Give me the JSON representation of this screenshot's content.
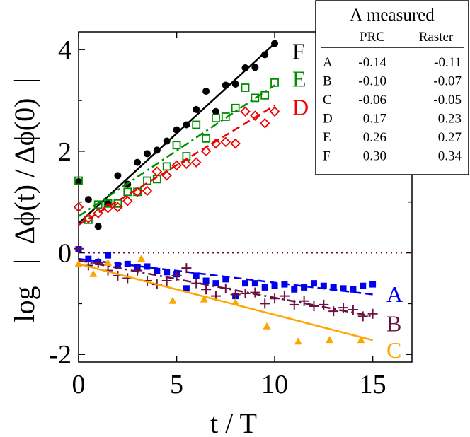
{
  "chart_data": {
    "type": "scatter",
    "title": "",
    "xlabel": "t / T",
    "ylabel_left": "log",
    "ylabel_fraction": "Δϕ(t) / Δϕ(0)",
    "xlim": [
      0,
      17
    ],
    "ylim": [
      -2.15,
      4.35
    ],
    "xticks": [
      0,
      5,
      10,
      15
    ],
    "yticks": [
      -2,
      0,
      2,
      4
    ],
    "xtick_labels": [
      "0",
      "5",
      "10",
      "15"
    ],
    "ytick_labels": [
      "-2",
      "0",
      "2",
      "4"
    ],
    "reference_line": {
      "y": 0,
      "style": "dotted",
      "color": "#6b1040"
    },
    "series": [
      {
        "name": "F",
        "color": "#000000",
        "marker": "circle",
        "line_style": "solid",
        "fit": {
          "x0": 0,
          "y0": 0.58,
          "x1": 10,
          "y1": 4.12
        },
        "x": [
          0,
          0.5,
          1,
          1.5,
          2,
          2.5,
          3,
          3.5,
          4,
          4.5,
          5,
          5.5,
          6,
          6.5,
          7,
          7.5,
          8,
          8.5,
          9,
          9.5,
          10
        ],
        "y": [
          1.4,
          1.05,
          0.52,
          0.97,
          1.52,
          1.35,
          1.78,
          1.95,
          2.02,
          2.2,
          2.42,
          2.52,
          2.82,
          3.18,
          2.78,
          3.3,
          3.32,
          3.64,
          3.65,
          3.9,
          4.12
        ]
      },
      {
        "name": "E",
        "color": "#008c00",
        "marker": "square-open",
        "line_style": "dashdot",
        "fit": {
          "x0": 0,
          "y0": 0.72,
          "x1": 10,
          "y1": 3.3
        },
        "x": [
          0,
          0.5,
          1,
          1.5,
          2,
          2.5,
          3,
          3.5,
          4,
          4.5,
          5,
          5.5,
          6,
          6.5,
          7,
          7.5,
          8,
          8.5,
          9,
          9.5,
          10
        ],
        "y": [
          1.42,
          0.65,
          0.95,
          0.97,
          0.97,
          1.2,
          1.2,
          1.42,
          1.45,
          1.7,
          2.12,
          1.9,
          2.52,
          2.25,
          2.65,
          2.68,
          2.85,
          3.25,
          3.05,
          3.1,
          3.35
        ]
      },
      {
        "name": "D",
        "color": "#ee0000",
        "marker": "diamond-open",
        "line_style": "dashed",
        "fit": {
          "x0": 0,
          "y0": 0.55,
          "x1": 10,
          "y1": 2.9
        },
        "x": [
          0,
          0.5,
          1,
          1.5,
          2,
          2.5,
          3,
          3.5,
          4,
          4.5,
          5,
          5.5,
          6,
          6.5,
          7,
          7.5,
          8,
          8.5,
          9,
          9.5,
          10
        ],
        "y": [
          0.9,
          0.68,
          0.78,
          0.88,
          0.9,
          1.02,
          1.2,
          1.22,
          1.6,
          1.52,
          1.72,
          1.75,
          1.78,
          2.0,
          2.15,
          2.18,
          2.15,
          2.78,
          2.7,
          2.55,
          2.78
        ]
      },
      {
        "name": "A",
        "color": "#0000ee",
        "marker": "square-filled",
        "line_style": "dashed",
        "fit": {
          "x0": 0,
          "y0": -0.12,
          "x1": 15,
          "y1": -0.82
        },
        "x": [
          0,
          0.5,
          1,
          1.5,
          2,
          2.5,
          3,
          3.5,
          4,
          4.5,
          5,
          5.5,
          6,
          6.5,
          7,
          7.5,
          8,
          8.5,
          9,
          9.5,
          10,
          10.5,
          11,
          11.5,
          12,
          12.5,
          13,
          13.5,
          14,
          14.5,
          15
        ],
        "y": [
          0.07,
          -0.12,
          -0.18,
          -0.05,
          -0.25,
          -0.22,
          -0.28,
          -0.27,
          -0.36,
          -0.38,
          -0.42,
          -0.7,
          -0.45,
          -0.55,
          -0.6,
          -0.52,
          -0.85,
          -0.6,
          -0.6,
          -0.68,
          -0.65,
          -0.62,
          -0.72,
          -0.68,
          -0.6,
          -0.65,
          -0.68,
          -0.7,
          -0.72,
          -0.65,
          -0.62
        ]
      },
      {
        "name": "B",
        "color": "#6b1040",
        "marker": "plus",
        "line_style": "dashdot",
        "fit": {
          "x0": 0,
          "y0": -0.15,
          "x1": 15,
          "y1": -1.25
        },
        "x": [
          0,
          0.5,
          1,
          1.5,
          2,
          2.5,
          3,
          3.5,
          4,
          4.5,
          5,
          5.5,
          6,
          6.5,
          7,
          7.5,
          8,
          8.5,
          9,
          9.5,
          10,
          10.5,
          11,
          11.5,
          12,
          12.5,
          13,
          13.5,
          14,
          14.5,
          15
        ],
        "y": [
          0.08,
          -0.25,
          -0.2,
          -0.35,
          -0.45,
          -0.5,
          -0.35,
          -0.55,
          -0.62,
          -0.55,
          -0.45,
          -0.3,
          -0.6,
          -0.72,
          -0.85,
          -0.7,
          -0.82,
          -0.8,
          -0.78,
          -1.0,
          -0.9,
          -0.85,
          -1.02,
          -0.95,
          -1.05,
          -1.02,
          -1.15,
          -1.08,
          -1.12,
          -1.25,
          -1.2
        ]
      },
      {
        "name": "C",
        "color": "#ffa500",
        "marker": "triangle-filled",
        "line_style": "solid",
        "fit": {
          "x0": 0,
          "y0": -0.22,
          "x1": 15,
          "y1": -1.72
        },
        "x": [
          0,
          0.75,
          1.5,
          3.2,
          4.8,
          6.4,
          8,
          9.6,
          11.2,
          12.8,
          14.4
        ],
        "y": [
          -0.22,
          -0.42,
          -0.2,
          -0.12,
          -0.95,
          -0.92,
          -0.98,
          -1.45,
          -1.75,
          -1.72,
          -1.72
        ]
      }
    ],
    "series_labels": {
      "F": {
        "x": 10.9,
        "y": 3.98
      },
      "E": {
        "x": 10.9,
        "y": 3.44
      },
      "D": {
        "x": 10.9,
        "y": 2.88
      },
      "A": {
        "x": 15.7,
        "y": -0.8
      },
      "B": {
        "x": 15.7,
        "y": -1.38
      },
      "C": {
        "x": 15.7,
        "y": -1.9
      }
    }
  },
  "table": {
    "title": "Λ measured",
    "columns": [
      "PRC",
      "Raster"
    ],
    "rows": [
      {
        "label": "A",
        "prc": "-0.14",
        "raster": "-0.11"
      },
      {
        "label": "B",
        "prc": "-0.10",
        "raster": "-0.07"
      },
      {
        "label": "C",
        "prc": "-0.06",
        "raster": "-0.05"
      },
      {
        "label": "D",
        "prc": "0.17",
        "raster": "0.23"
      },
      {
        "label": "E",
        "prc": "0.26",
        "raster": "0.27"
      },
      {
        "label": "F",
        "prc": "0.30",
        "raster": "0.34"
      }
    ]
  }
}
